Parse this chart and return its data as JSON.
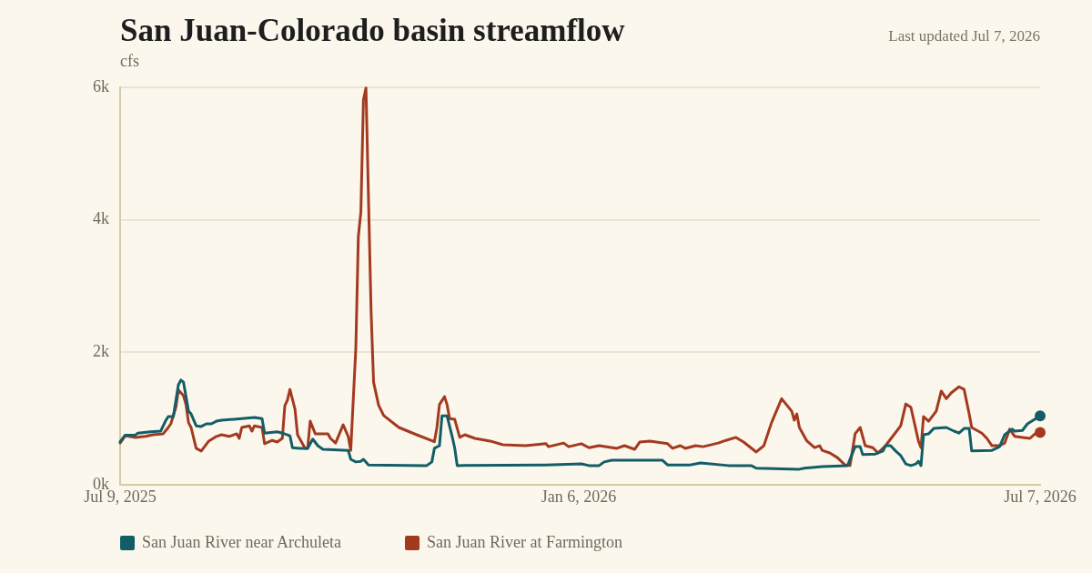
{
  "chart_data": {
    "type": "line",
    "title": "San Juan-Colorado basin streamflow",
    "ylabel": "cfs",
    "annotations": [
      "Last updated Jul 7, 2026"
    ],
    "xlim": [
      "2025-07-09",
      "2026-07-07"
    ],
    "xticks": [
      {
        "value": "2025-07-09",
        "label": "Jul 9, 2025"
      },
      {
        "value": "2026-01-06",
        "label": "Jan 6, 2026"
      },
      {
        "value": "2026-07-07",
        "label": "Jul 7, 2026"
      }
    ],
    "ylim": [
      0,
      6000
    ],
    "yticks": [
      {
        "value": 0,
        "label": "0k"
      },
      {
        "value": 2000,
        "label": "2k"
      },
      {
        "value": 4000,
        "label": "4k"
      },
      {
        "value": 6000,
        "label": "6k"
      }
    ],
    "grid": "y",
    "legend": "bottom",
    "line_style": "solid",
    "series": [
      {
        "name": "San Juan River near Archuleta",
        "color": "#135e66",
        "x": [
          "2025-07-09",
          "2025-07-11",
          "2025-07-15",
          "2025-07-16",
          "2025-07-21",
          "2025-07-25",
          "2025-07-27",
          "2025-07-28",
          "2025-07-30",
          "2025-08-01",
          "2025-08-02",
          "2025-08-03",
          "2025-08-05",
          "2025-08-06",
          "2025-08-08",
          "2025-08-10",
          "2025-08-12",
          "2025-08-14",
          "2025-08-16",
          "2025-08-18",
          "2025-08-23",
          "2025-08-31",
          "2025-09-03",
          "2025-09-04",
          "2025-09-09",
          "2025-09-11",
          "2025-09-14",
          "2025-09-15",
          "2025-09-18",
          "2025-09-21",
          "2025-09-23",
          "2025-09-25",
          "2025-09-27",
          "2025-10-07",
          "2025-10-08",
          "2025-10-10",
          "2025-10-12",
          "2025-10-13",
          "2025-10-15",
          "2025-11-07",
          "2025-11-09",
          "2025-11-10",
          "2025-11-12",
          "2025-11-13",
          "2025-11-15",
          "2025-11-17",
          "2025-11-18",
          "2025-11-19",
          "2025-12-24",
          "2026-01-07",
          "2026-01-10",
          "2026-01-14",
          "2026-01-16",
          "2026-01-19",
          "2026-02-08",
          "2026-02-10",
          "2026-02-19",
          "2026-02-23",
          "2026-03-06",
          "2026-03-15",
          "2026-03-17",
          "2026-04-03",
          "2026-04-05",
          "2026-04-12",
          "2026-04-22",
          "2026-04-25",
          "2026-04-27",
          "2026-04-28",
          "2026-05-03",
          "2026-05-06",
          "2026-05-07",
          "2026-05-09",
          "2026-05-11",
          "2026-05-13",
          "2026-05-15",
          "2026-05-17",
          "2026-05-19",
          "2026-05-20",
          "2026-05-21",
          "2026-05-22",
          "2026-05-24",
          "2026-05-26",
          "2026-05-31",
          "2026-06-03",
          "2026-06-05",
          "2026-06-07",
          "2026-06-09",
          "2026-06-10",
          "2026-06-18",
          "2026-06-21",
          "2026-06-23",
          "2026-06-26",
          "2026-06-27",
          "2026-06-30",
          "2026-07-02",
          "2026-07-07"
        ],
        "values": [
          650,
          750,
          750,
          780,
          800,
          810,
          970,
          1030,
          1030,
          1510,
          1580,
          1550,
          1110,
          1070,
          890,
          880,
          920,
          920,
          960,
          975,
          990,
          1015,
          1000,
          780,
          800,
          780,
          740,
          560,
          550,
          550,
          690,
          590,
          535,
          520,
          385,
          345,
          355,
          385,
          300,
          290,
          345,
          550,
          590,
          1040,
          1040,
          730,
          560,
          290,
          300,
          315,
          290,
          290,
          345,
          370,
          370,
          300,
          300,
          330,
          290,
          290,
          250,
          235,
          250,
          275,
          290,
          575,
          575,
          455,
          465,
          510,
          590,
          590,
          510,
          440,
          315,
          290,
          315,
          355,
          290,
          755,
          770,
          850,
          865,
          810,
          780,
          850,
          850,
          510,
          520,
          575,
          755,
          840,
          810,
          820,
          920,
          1040
        ]
      },
      {
        "name": "San Juan River at Farmington",
        "color": "#a33a1f",
        "x": [
          "2025-07-09",
          "2025-07-11",
          "2025-07-15",
          "2025-07-19",
          "2025-07-22",
          "2025-07-26",
          "2025-07-28",
          "2025-07-29",
          "2025-07-31",
          "2025-08-01",
          "2025-08-03",
          "2025-08-04",
          "2025-08-05",
          "2025-08-06",
          "2025-08-08",
          "2025-08-10",
          "2025-08-13",
          "2025-08-16",
          "2025-08-18",
          "2025-08-21",
          "2025-08-24",
          "2025-08-25",
          "2025-08-26",
          "2025-08-29",
          "2025-08-30",
          "2025-08-31",
          "2025-09-03",
          "2025-09-04",
          "2025-09-07",
          "2025-09-09",
          "2025-09-11",
          "2025-09-12",
          "2025-09-13",
          "2025-09-14",
          "2025-09-16",
          "2025-09-17",
          "2025-09-20",
          "2025-09-21",
          "2025-09-22",
          "2025-09-24",
          "2025-09-29",
          "2025-09-30",
          "2025-10-02",
          "2025-10-05",
          "2025-10-07",
          "2025-10-08",
          "2025-10-10",
          "2025-10-11",
          "2025-10-12",
          "2025-10-13",
          "2025-10-14",
          "2025-10-16",
          "2025-10-17",
          "2025-10-19",
          "2025-10-21",
          "2025-10-27",
          "2025-11-03",
          "2025-11-10",
          "2025-11-11",
          "2025-11-12",
          "2025-11-14",
          "2025-11-15",
          "2025-11-16",
          "2025-11-18",
          "2025-11-20",
          "2025-11-22",
          "2025-11-26",
          "2025-12-02",
          "2025-12-07",
          "2025-12-16",
          "2025-12-24",
          "2025-12-25",
          "2025-12-31",
          "2026-01-02",
          "2026-01-07",
          "2026-01-10",
          "2026-01-14",
          "2026-01-21",
          "2026-01-24",
          "2026-01-28",
          "2026-01-30",
          "2026-02-03",
          "2026-02-10",
          "2026-02-12",
          "2026-02-15",
          "2026-02-17",
          "2026-02-21",
          "2026-02-24",
          "2026-03-02",
          "2026-03-05",
          "2026-03-09",
          "2026-03-12",
          "2026-03-17",
          "2026-03-20",
          "2026-03-23",
          "2026-03-27",
          "2026-03-31",
          "2026-04-01",
          "2026-04-02",
          "2026-04-03",
          "2026-04-06",
          "2026-04-09",
          "2026-04-11",
          "2026-04-12",
          "2026-04-15",
          "2026-04-18",
          "2026-04-21",
          "2026-04-23",
          "2026-04-25",
          "2026-04-27",
          "2026-04-29",
          "2026-05-02",
          "2026-05-04",
          "2026-05-07",
          "2026-05-09",
          "2026-05-13",
          "2026-05-15",
          "2026-05-17",
          "2026-05-20",
          "2026-05-21",
          "2026-05-22",
          "2026-05-24",
          "2026-05-27",
          "2026-05-29",
          "2026-05-31",
          "2026-06-02",
          "2026-06-05",
          "2026-06-07",
          "2026-06-09",
          "2026-06-10",
          "2026-06-14",
          "2026-06-16",
          "2026-06-18",
          "2026-06-21",
          "2026-06-23",
          "2026-06-25",
          "2026-06-27",
          "2026-06-30",
          "2026-07-03",
          "2026-07-05",
          "2026-07-07"
        ],
        "values": [
          630,
          740,
          715,
          730,
          755,
          770,
          865,
          920,
          1170,
          1430,
          1345,
          1210,
          935,
          865,
          550,
          510,
          660,
          730,
          755,
          730,
          770,
          700,
          865,
          890,
          810,
          890,
          865,
          620,
          670,
          645,
          700,
          1195,
          1275,
          1440,
          1140,
          755,
          550,
          550,
          960,
          770,
          770,
          700,
          630,
          905,
          730,
          520,
          2060,
          3750,
          4120,
          5810,
          5990,
          2650,
          1550,
          1200,
          1045,
          865,
          755,
          650,
          865,
          1210,
          1330,
          1210,
          1000,
          990,
          715,
          755,
          700,
          660,
          605,
          590,
          620,
          575,
          630,
          575,
          620,
          560,
          590,
          550,
          590,
          535,
          645,
          660,
          620,
          550,
          590,
          550,
          590,
          575,
          630,
          670,
          715,
          645,
          495,
          590,
          935,
          1300,
          1110,
          975,
          1070,
          865,
          660,
          560,
          590,
          520,
          480,
          410,
          300,
          290,
          770,
          865,
          590,
          560,
          480,
          590,
          690,
          890,
          1220,
          1170,
          660,
          560,
          1030,
          960,
          1110,
          1415,
          1300,
          1390,
          1480,
          1440,
          1070,
          865,
          780,
          700,
          590,
          590,
          630,
          840,
          730,
          715,
          700,
          770,
          790
        ]
      }
    ]
  }
}
